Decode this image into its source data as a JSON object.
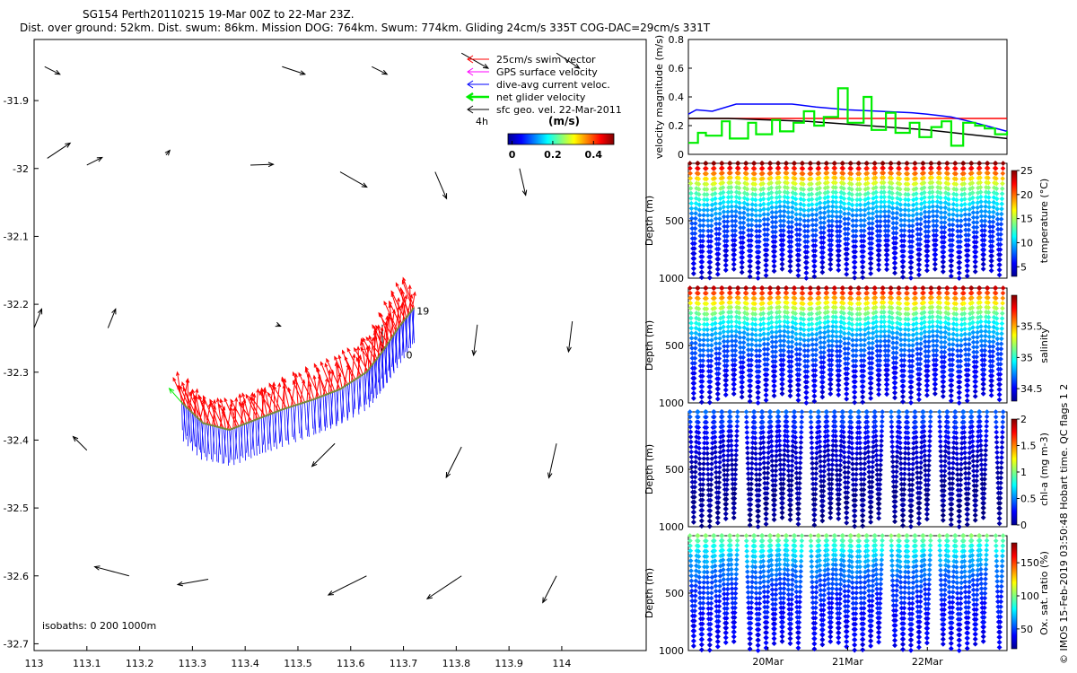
{
  "title": {
    "line1": "SG154 Perth20110215 19-Mar 00Z to 22-Mar 23Z.",
    "line2": "Dist. over ground: 52km. Dist. swum: 86km. Mission DOG: 764km. Swum: 774km. Gliding 24cm/s 335T COG-DAC=29cm/s 331T"
  },
  "copyright": "© IMOS 15-Feb-2019 03:50:48 Hobart time. QC flags 1  2",
  "colors": {
    "swim": "#ff0000",
    "gps": "#ff00ff",
    "dac": "#0000ff",
    "net": "#00ee00",
    "sfc": "#000000",
    "track": "#7a8a3a"
  },
  "chart_data": [
    {
      "type": "map",
      "name": "track-map",
      "xlim": [
        113,
        114.16
      ],
      "ylim": [
        -32.71,
        -31.81
      ],
      "xticks": [
        113,
        113.1,
        113.2,
        113.3,
        113.4,
        113.5,
        113.6,
        113.7,
        113.8,
        113.9,
        114
      ],
      "xtick_labels": [
        "113",
        "113.1",
        "113.2",
        "113.3",
        "113.4",
        "113.5",
        "113.6",
        "113.7",
        "113.8",
        "113.9",
        "114"
      ],
      "yticks": [
        -31.9,
        -32,
        -32.1,
        -32.2,
        -32.3,
        -32.4,
        -32.5,
        -32.6,
        -32.7
      ],
      "ytick_labels": [
        "-31.9",
        "-32",
        "-32.1",
        "-32.2",
        "-32.3",
        "-32.4",
        "-32.5",
        "-32.6",
        "-32.7"
      ],
      "legend": {
        "entries": [
          {
            "label": "25cm/s swim vector",
            "color": "#ff0000"
          },
          {
            "label": "GPS surface velocity",
            "color": "#ff00ff"
          },
          {
            "label": "dive-avg current veloc.",
            "color": "#0000ff"
          },
          {
            "label": "net glider velocity",
            "color": "#00ee00"
          },
          {
            "label": "sfc geo. vel. 22-Mar-2011",
            "color": "#000000"
          }
        ],
        "time_label": "4h",
        "colorbar_title": "(m/s)",
        "colorbar_ticks": [
          0,
          0.2,
          0.4
        ],
        "colorbar_tick_labels": [
          "0",
          "0.2",
          "0.4"
        ],
        "colorbar_range": [
          -0.02,
          0.5
        ]
      },
      "track_labels": [
        {
          "text": "19",
          "lon": 113.725,
          "lat": -32.215
        },
        {
          "text": "0",
          "lon": 113.705,
          "lat": -32.28
        }
      ],
      "track": [
        [
          113.28,
          -32.345
        ],
        [
          113.32,
          -32.375
        ],
        [
          113.37,
          -32.385
        ],
        [
          113.42,
          -32.37
        ],
        [
          113.47,
          -32.355
        ],
        [
          113.53,
          -32.34
        ],
        [
          113.58,
          -32.325
        ],
        [
          113.63,
          -32.3
        ],
        [
          113.66,
          -32.27
        ],
        [
          113.69,
          -32.235
        ],
        [
          113.72,
          -32.205
        ]
      ],
      "swim_vector": {
        "du": -0.006,
        "dv": 0.04,
        "spread": 0.012
      },
      "dac_vector": {
        "du": 0.001,
        "dv": -0.048,
        "spread": 0.004
      },
      "sfc_vectors": [
        {
          "lon": 113.025,
          "lat": -31.985,
          "u": 0.03,
          "v": 0.02
        },
        {
          "lon": 113.1,
          "lat": -31.995,
          "u": 0.02,
          "v": 0.01
        },
        {
          "lon": 113.25,
          "lat": -31.98,
          "u": 0.005,
          "v": 0.006
        },
        {
          "lon": 113.41,
          "lat": -31.995,
          "u": 0.03,
          "v": 0.001
        },
        {
          "lon": 113.58,
          "lat": -32.005,
          "u": 0.035,
          "v": -0.02
        },
        {
          "lon": 113.76,
          "lat": -32.005,
          "u": 0.015,
          "v": -0.035
        },
        {
          "lon": 113.92,
          "lat": -32.0,
          "u": 0.008,
          "v": -0.035
        },
        {
          "lon": 113.02,
          "lat": -31.85,
          "u": 0.02,
          "v": -0.01
        },
        {
          "lon": 113.47,
          "lat": -31.85,
          "u": 0.03,
          "v": -0.01
        },
        {
          "lon": 113.64,
          "lat": -31.85,
          "u": 0.02,
          "v": -0.01
        },
        {
          "lon": 113.81,
          "lat": -31.83,
          "u": 0.035,
          "v": -0.02
        },
        {
          "lon": 113.99,
          "lat": -31.83,
          "u": 0.03,
          "v": -0.02
        },
        {
          "lon": 113.0,
          "lat": -32.235,
          "u": 0.01,
          "v": 0.025
        },
        {
          "lon": 113.14,
          "lat": -32.235,
          "u": 0.01,
          "v": 0.025
        },
        {
          "lon": 113.46,
          "lat": -32.23,
          "u": 0.005,
          "v": -0.002
        },
        {
          "lon": 113.66,
          "lat": -32.23,
          "u": 0.0,
          "v": -0.035
        },
        {
          "lon": 113.84,
          "lat": -32.23,
          "u": -0.005,
          "v": -0.04
        },
        {
          "lon": 114.02,
          "lat": -32.225,
          "u": -0.005,
          "v": -0.04
        },
        {
          "lon": 113.1,
          "lat": -32.415,
          "u": -0.018,
          "v": 0.018
        },
        {
          "lon": 113.57,
          "lat": -32.405,
          "u": -0.03,
          "v": -0.03
        },
        {
          "lon": 113.81,
          "lat": -32.41,
          "u": -0.02,
          "v": -0.04
        },
        {
          "lon": 113.99,
          "lat": -32.405,
          "u": -0.01,
          "v": -0.045
        },
        {
          "lon": 113.18,
          "lat": -32.6,
          "u": -0.045,
          "v": 0.012
        },
        {
          "lon": 113.33,
          "lat": -32.605,
          "u": -0.04,
          "v": -0.007
        },
        {
          "lon": 113.63,
          "lat": -32.6,
          "u": -0.05,
          "v": -0.025
        },
        {
          "lon": 113.81,
          "lat": -32.6,
          "u": -0.045,
          "v": -0.03
        },
        {
          "lon": 113.99,
          "lat": -32.6,
          "u": -0.018,
          "v": -0.035
        }
      ],
      "isobath_label": "isobaths: 0   200  1000m"
    },
    {
      "type": "line",
      "name": "velocity-magnitude",
      "ylabel": "velocity magnitude (m/s)",
      "xlim": [
        19,
        23
      ],
      "ylim": [
        0,
        0.8
      ],
      "yticks": [
        0,
        0.2,
        0.4,
        0.6,
        0.8
      ],
      "ytick_labels": [
        "0",
        "0.2",
        "0.4",
        "0.6",
        "0.8"
      ],
      "series": [
        {
          "name": "swim speed",
          "color": "#ff0000",
          "x": [
            19,
            23
          ],
          "y": [
            0.25,
            0.25
          ]
        },
        {
          "name": "dive-avg current",
          "color": "#0000ff",
          "x": [
            19.0,
            19.1,
            19.3,
            19.6,
            20.0,
            20.3,
            20.6,
            21.0,
            21.4,
            21.8,
            22.0,
            22.3,
            22.6,
            22.8,
            23.0
          ],
          "y": [
            0.28,
            0.31,
            0.3,
            0.35,
            0.35,
            0.35,
            0.33,
            0.31,
            0.3,
            0.29,
            0.28,
            0.26,
            0.22,
            0.19,
            0.16
          ]
        },
        {
          "name": "sfc geo vel",
          "color": "#000000",
          "x": [
            19.0,
            19.5,
            20.0,
            20.5,
            21.0,
            21.5,
            22.0,
            22.5,
            23.0
          ],
          "y": [
            0.25,
            0.25,
            0.24,
            0.23,
            0.21,
            0.19,
            0.17,
            0.14,
            0.11
          ]
        },
        {
          "name": "net glider velocity",
          "color": "#00ee00",
          "steps": true,
          "x": [
            19.0,
            19.12,
            19.22,
            19.42,
            19.52,
            19.75,
            19.85,
            20.05,
            20.15,
            20.32,
            20.45,
            20.58,
            20.7,
            20.88,
            21.0,
            21.2,
            21.3,
            21.48,
            21.6,
            21.78,
            21.9,
            22.05,
            22.18,
            22.3,
            22.45,
            22.6,
            22.72,
            22.85,
            23.0
          ],
          "y": [
            0.08,
            0.15,
            0.13,
            0.23,
            0.11,
            0.22,
            0.14,
            0.24,
            0.16,
            0.22,
            0.3,
            0.2,
            0.26,
            0.46,
            0.22,
            0.4,
            0.17,
            0.29,
            0.15,
            0.22,
            0.12,
            0.19,
            0.23,
            0.06,
            0.22,
            0.2,
            0.18,
            0.14,
            0.16
          ]
        }
      ]
    },
    {
      "type": "scatter",
      "name": "temperature-section",
      "ylabel": "Depth (m)",
      "ylim": [
        1000,
        0
      ],
      "yticks": [
        500,
        1000
      ],
      "ytick_labels": [
        "500",
        "1000"
      ],
      "colorbar": {
        "label": "temperature (°C)",
        "range": [
          3,
          25
        ],
        "ticks": [
          5,
          10,
          15,
          20,
          25
        ],
        "tick_labels": [
          "5",
          "10",
          "15",
          "20",
          "25"
        ]
      },
      "profiles": {
        "start_day": 19.0,
        "end_day": 23.0,
        "count": 39,
        "max_depth": 1000,
        "surface_value": 25,
        "deep_value": 4,
        "gaps": []
      }
    },
    {
      "type": "scatter",
      "name": "salinity-section",
      "ylabel": "Depth (m)",
      "ylim": [
        1000,
        0
      ],
      "yticks": [
        500,
        1000
      ],
      "ytick_labels": [
        "500",
        "1000"
      ],
      "colorbar": {
        "label": "salinity",
        "range": [
          34.3,
          36.0
        ],
        "ticks": [
          34.5,
          35,
          35.5
        ],
        "tick_labels": [
          "34.5",
          "35",
          "35.5"
        ]
      },
      "profiles": {
        "start_day": 19.0,
        "end_day": 23.0,
        "count": 39,
        "max_depth": 1000,
        "surface_value": 35.9,
        "deep_value": 34.4,
        "gaps": []
      }
    },
    {
      "type": "scatter",
      "name": "chlorophyll-section",
      "ylabel": "Depth (m)",
      "ylim": [
        1000,
        0
      ],
      "yticks": [
        500,
        1000
      ],
      "ytick_labels": [
        "500",
        "1000"
      ],
      "colorbar": {
        "label": "chl-a (mg m-3)",
        "range": [
          0,
          2
        ],
        "ticks": [
          0,
          0.5,
          1,
          1.5,
          2
        ],
        "tick_labels": [
          "0",
          "0.5",
          "1",
          "1.5",
          "2"
        ]
      },
      "profiles": {
        "start_day": 19.0,
        "end_day": 23.0,
        "count": 39,
        "max_depth": 1000,
        "surface_value": 0.45,
        "deep_value": 0.02,
        "gaps": [
          [
            19.55,
            19.65
          ],
          [
            20.42,
            20.5
          ],
          [
            21.35,
            21.5
          ],
          [
            22.02,
            22.08
          ],
          [
            22.68,
            22.78
          ]
        ]
      }
    },
    {
      "type": "scatter",
      "name": "oxygen-section",
      "ylabel": "Depth (m)",
      "ylim": [
        1000,
        0
      ],
      "yticks": [
        500,
        1000
      ],
      "ytick_labels": [
        "500",
        "1000"
      ],
      "xticks": [
        20,
        21,
        22
      ],
      "xtick_labels": [
        "20Mar",
        "21Mar",
        "22Mar"
      ],
      "colorbar": {
        "label": "Ox. sat. ratio (%)",
        "range": [
          20,
          180
        ],
        "ticks": [
          50,
          100,
          150
        ],
        "tick_labels": [
          "50",
          "100",
          "150"
        ]
      },
      "profiles": {
        "start_day": 19.0,
        "end_day": 23.0,
        "count": 39,
        "max_depth": 1000,
        "surface_value": 100,
        "deep_value": 35,
        "gaps": [
          [
            19.55,
            19.65
          ],
          [
            20.42,
            20.5
          ],
          [
            21.35,
            21.5
          ],
          [
            22.02,
            22.08
          ],
          [
            22.68,
            22.78
          ]
        ]
      }
    }
  ]
}
